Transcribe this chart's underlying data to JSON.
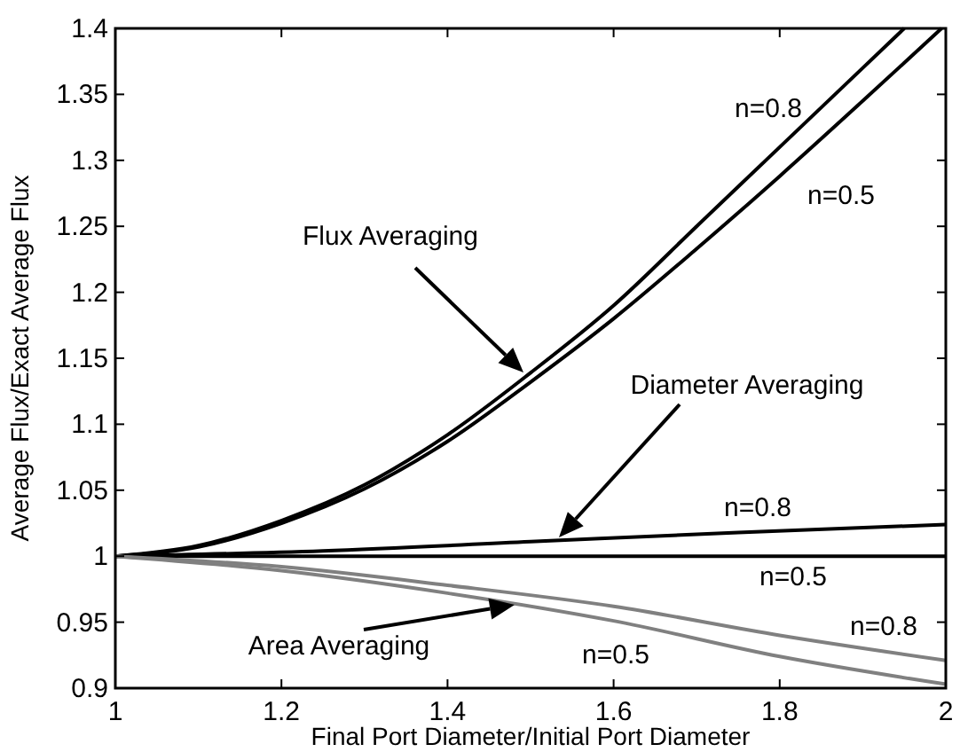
{
  "chart_data": {
    "type": "line",
    "xlabel": "Final Port Diameter/Initial Port Diameter",
    "ylabel": "Average Flux/Exact Average Flux",
    "xlim": [
      1,
      2
    ],
    "ylim": [
      0.9,
      1.4
    ],
    "xticks": [
      1,
      1.2,
      1.4,
      1.6,
      1.8,
      2
    ],
    "yticks": [
      0.9,
      0.95,
      1,
      1.05,
      1.1,
      1.15,
      1.2,
      1.25,
      1.3,
      1.35,
      1.4
    ],
    "grid": false,
    "marker": "none",
    "line_style": "solid",
    "series": [
      {
        "color": "#000000",
        "x": [
          1,
          1.1,
          1.2,
          1.3,
          1.4,
          1.5,
          1.6,
          1.7,
          1.8,
          1.9,
          1.95
        ],
        "values": [
          1,
          1.008,
          1.027,
          1.054,
          1.092,
          1.139,
          1.19,
          1.25,
          1.31,
          1.37,
          1.4
        ]
      },
      {
        "color": "#000000",
        "x": [
          1,
          1.1,
          1.2,
          1.3,
          1.4,
          1.5,
          1.6,
          1.7,
          1.8,
          1.9,
          1.995
        ],
        "values": [
          1,
          1.007,
          1.025,
          1.051,
          1.087,
          1.132,
          1.18,
          1.233,
          1.288,
          1.345,
          1.4
        ]
      },
      {
        "color": "#000000",
        "x": [
          1,
          1.25,
          1.5,
          1.75,
          2
        ],
        "values": [
          1,
          1.004,
          1.011,
          1.018,
          1.024
        ]
      },
      {
        "color": "#000000",
        "x": [
          1,
          2
        ],
        "values": [
          1,
          1
        ]
      },
      {
        "color": "#808080",
        "x": [
          1,
          1.2,
          1.4,
          1.6,
          1.8,
          2
        ],
        "values": [
          1,
          0.992,
          0.978,
          0.962,
          0.94,
          0.921
        ]
      },
      {
        "color": "#808080",
        "x": [
          1,
          1.2,
          1.4,
          1.6,
          1.8,
          2
        ],
        "values": [
          1,
          0.989,
          0.972,
          0.951,
          0.924,
          0.903
        ]
      }
    ],
    "annotations": [
      "n=0.8",
      "n=0.5",
      "Flux Averaging",
      "Diameter Averaging",
      "n=0.8",
      "n=0.5",
      "n=0.8",
      "Area Averaging",
      "n=0.5"
    ]
  }
}
